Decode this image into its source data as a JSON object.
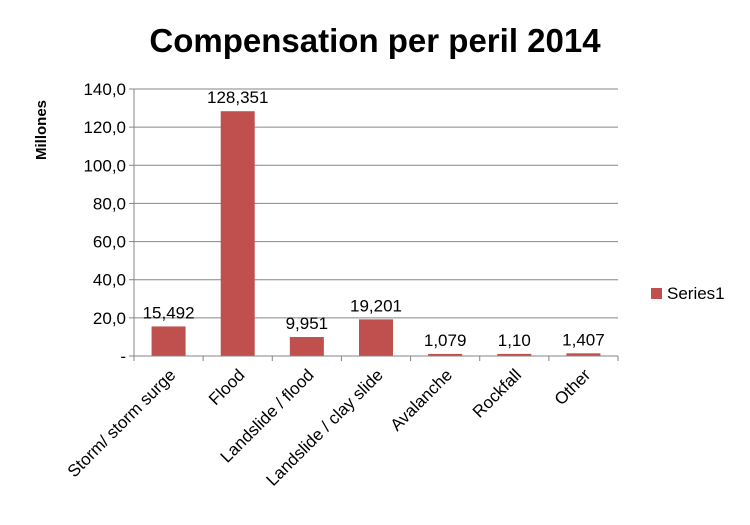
{
  "chart_data": {
    "type": "bar",
    "title": "Compensation per peril 2014",
    "ylabel": "Millones",
    "xlabel": "",
    "ylim": [
      0,
      140
    ],
    "ytick_step": 20,
    "ytick_labels": [
      "-",
      "20,0",
      "40,0",
      "60,0",
      "80,0",
      "100,0",
      "120,0",
      "140,0"
    ],
    "grid": true,
    "legend_position": "right",
    "categories": [
      "Storm/ storm surge",
      "Flood",
      "Landslide / flood",
      "Landslide / clay slide",
      "Avalanche",
      "Rockfall",
      "Other"
    ],
    "series": [
      {
        "name": "Series1",
        "color": "#C0504D",
        "values": [
          15.492,
          128.351,
          9.951,
          19.201,
          1.079,
          1.1,
          1.407
        ],
        "labels": [
          "15,492",
          "128,351",
          "9,951",
          "19,201",
          "1,079",
          "1,10",
          "1,407"
        ]
      }
    ]
  }
}
